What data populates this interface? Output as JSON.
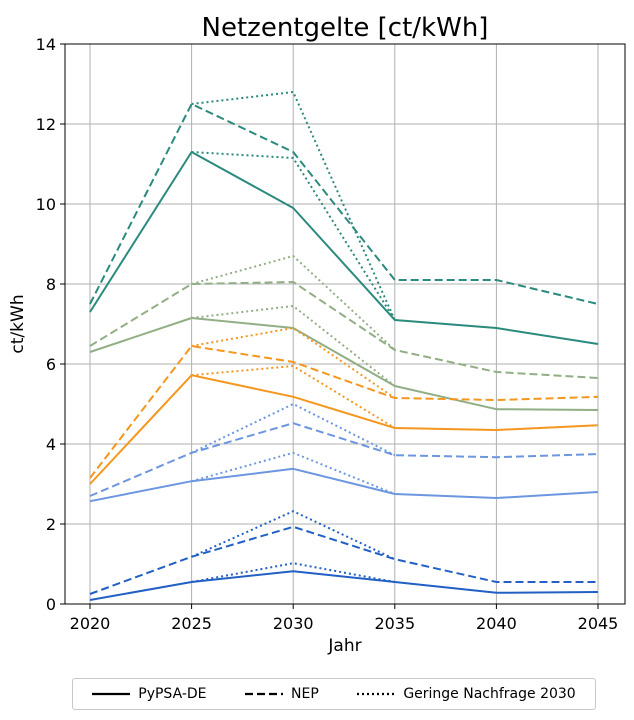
{
  "chart_data": {
    "type": "line",
    "title": "Netzentgelte [ct/kWh]",
    "xlabel": "Jahr",
    "ylabel": "ct/kWh",
    "xlim": [
      2020,
      2045
    ],
    "ylim": [
      0,
      14
    ],
    "x_ticks": [
      "2020",
      "2025",
      "2030",
      "2035",
      "2040",
      "2045"
    ],
    "y_ticks": [
      "0",
      "2",
      "4",
      "6",
      "8",
      "10",
      "12",
      "14"
    ],
    "grid": true,
    "legend": {
      "placement": "bottom",
      "entries": [
        {
          "label": "PyPSA-DE",
          "style": "solid"
        },
        {
          "label": "NEP",
          "style": "dashed"
        },
        {
          "label": "Geringe Nachfrage 2030",
          "style": "dotted"
        }
      ]
    },
    "x": [
      2020,
      2025,
      2030,
      2035,
      2040,
      2045
    ],
    "series": [
      {
        "color": "#2b8a7e",
        "style": "solid",
        "x": [
          2020,
          2025,
          2030,
          2035,
          2040,
          2045
        ],
        "values": [
          7.3,
          11.3,
          9.9,
          7.1,
          6.9,
          6.5
        ]
      },
      {
        "color": "#2b8a7e",
        "style": "dashed",
        "x": [
          2020,
          2025,
          2030,
          2035,
          2040,
          2045
        ],
        "values": [
          7.5,
          12.5,
          11.3,
          8.1,
          8.1,
          7.5
        ]
      },
      {
        "color": "#2b8a7e",
        "style": "dotted",
        "x": [
          2025,
          2030,
          2035
        ],
        "values": [
          12.5,
          12.8,
          7.1
        ]
      },
      {
        "color": "#2b8a7e",
        "style": "dotted",
        "x": [
          2025,
          2030,
          2035
        ],
        "values": [
          11.3,
          11.15,
          7.1
        ]
      },
      {
        "color": "#92ae85",
        "style": "solid",
        "x": [
          2020,
          2025,
          2030,
          2035,
          2040,
          2045
        ],
        "values": [
          6.3,
          7.15,
          6.9,
          5.45,
          4.87,
          4.85
        ]
      },
      {
        "color": "#92ae85",
        "style": "dashed",
        "x": [
          2020,
          2025,
          2030,
          2035,
          2040,
          2045
        ],
        "values": [
          6.45,
          8.0,
          8.05,
          6.35,
          5.8,
          5.65
        ]
      },
      {
        "color": "#92ae85",
        "style": "dotted",
        "x": [
          2025,
          2030,
          2035
        ],
        "values": [
          8.0,
          8.7,
          6.35
        ]
      },
      {
        "color": "#92ae85",
        "style": "dotted",
        "x": [
          2025,
          2030,
          2035
        ],
        "values": [
          7.15,
          7.45,
          5.45
        ]
      },
      {
        "color": "#f5961e",
        "style": "solid",
        "x": [
          2020,
          2025,
          2030,
          2035,
          2040,
          2045
        ],
        "values": [
          3.0,
          5.72,
          5.18,
          4.4,
          4.35,
          4.47
        ]
      },
      {
        "color": "#f5961e",
        "style": "dashed",
        "x": [
          2020,
          2025,
          2030,
          2035,
          2040,
          2045
        ],
        "values": [
          3.15,
          6.45,
          6.05,
          5.15,
          5.1,
          5.18
        ]
      },
      {
        "color": "#f5961e",
        "style": "dotted",
        "x": [
          2025,
          2030,
          2035
        ],
        "values": [
          6.45,
          6.9,
          5.15
        ]
      },
      {
        "color": "#f5961e",
        "style": "dotted",
        "x": [
          2025,
          2030,
          2035
        ],
        "values": [
          5.72,
          5.95,
          4.4
        ]
      },
      {
        "color": "#6d96e0",
        "style": "solid",
        "x": [
          2020,
          2025,
          2030,
          2035,
          2040,
          2045
        ],
        "values": [
          2.57,
          3.07,
          3.38,
          2.75,
          2.65,
          2.8
        ]
      },
      {
        "color": "#6d96e0",
        "style": "dashed",
        "x": [
          2020,
          2025,
          2030,
          2035,
          2040,
          2045
        ],
        "values": [
          2.7,
          3.78,
          4.52,
          3.72,
          3.67,
          3.75
        ]
      },
      {
        "color": "#6d96e0",
        "style": "dotted",
        "x": [
          2025,
          2030,
          2035
        ],
        "values": [
          3.78,
          5.0,
          3.72
        ]
      },
      {
        "color": "#6d96e0",
        "style": "dotted",
        "x": [
          2025,
          2030,
          2035
        ],
        "values": [
          3.07,
          3.78,
          2.75
        ]
      },
      {
        "color": "#2260c4",
        "style": "solid",
        "x": [
          2020,
          2025,
          2030,
          2035,
          2040,
          2045
        ],
        "values": [
          0.1,
          0.55,
          0.82,
          0.55,
          0.28,
          0.3
        ]
      },
      {
        "color": "#2260c4",
        "style": "dashed",
        "x": [
          2020,
          2025,
          2030,
          2035,
          2040,
          2045
        ],
        "values": [
          0.25,
          1.18,
          1.93,
          1.12,
          0.55,
          0.55
        ]
      },
      {
        "color": "#2260c4",
        "style": "dotted",
        "x": [
          2025,
          2030,
          2035
        ],
        "values": [
          1.18,
          2.32,
          1.12
        ]
      },
      {
        "color": "#2260c4",
        "style": "dotted",
        "x": [
          2025,
          2030,
          2035
        ],
        "values": [
          0.55,
          1.02,
          0.55
        ]
      }
    ]
  }
}
